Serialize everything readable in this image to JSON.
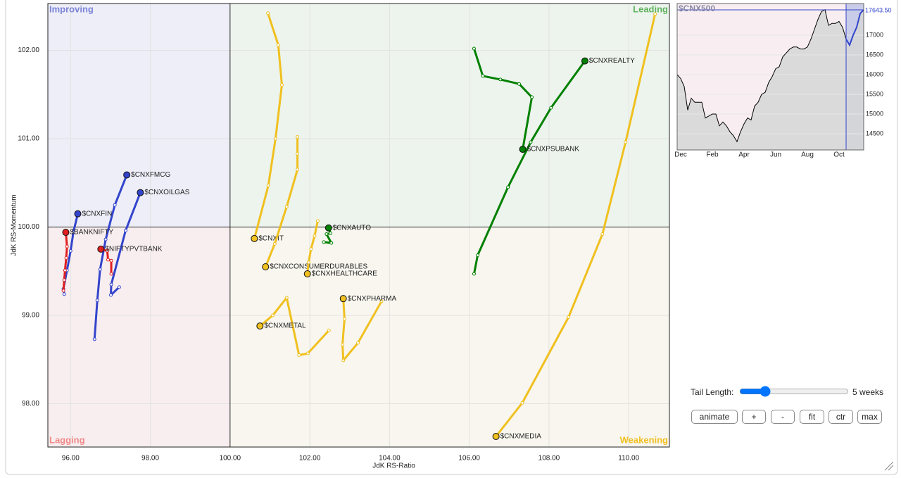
{
  "chart_data": [
    {
      "type": "rrg",
      "x_label": "JdK RS-Ratio",
      "y_label": "JdK RS-Momentum",
      "xlim": [
        95.43,
        111.02
      ],
      "ylim": [
        97.51,
        102.53
      ],
      "center": [
        100,
        100
      ],
      "grid": true,
      "xticks": [
        {
          "value": 96,
          "label": "96.00"
        },
        {
          "value": 98,
          "label": "98.00"
        },
        {
          "value": 100,
          "label": "100.00"
        },
        {
          "value": 102,
          "label": "102.00"
        },
        {
          "value": 104,
          "label": "104.00"
        },
        {
          "value": 106,
          "label": "106.00"
        },
        {
          "value": 108,
          "label": "108.00"
        },
        {
          "value": 110,
          "label": "110.00"
        }
      ],
      "yticks": [
        {
          "value": 98,
          "label": "98.00"
        },
        {
          "value": 99,
          "label": "99.00"
        },
        {
          "value": 100,
          "label": "100.00"
        },
        {
          "value": 101,
          "label": "101.00"
        },
        {
          "value": 102,
          "label": "102.00"
        }
      ],
      "quadrants": [
        {
          "label": "Improving",
          "color": "#7b84d8",
          "fill": "#eeeef8"
        },
        {
          "label": "Leading",
          "color": "#5fb35f",
          "fill": "#edf4ed"
        },
        {
          "label": "Lagging",
          "color": "#f08a8a",
          "fill": "#f8eeef"
        },
        {
          "label": "Weakening",
          "color": "#f0c020",
          "fill": "#f8f6ee"
        }
      ],
      "series": [
        {
          "name": "$CNXREALTY",
          "color": "#008000",
          "x": [
            106.12,
            106.21,
            106.97,
            107.54,
            108.05,
            108.9
          ],
          "values": [
            99.47,
            99.68,
            100.45,
            100.96,
            101.35,
            101.88
          ]
        },
        {
          "name": "$CNXPSUBANK",
          "color": "#008000",
          "x": [
            106.12,
            106.34,
            106.78,
            107.25,
            107.57,
            107.34
          ],
          "values": [
            102.02,
            101.71,
            101.67,
            101.62,
            101.47,
            100.88
          ]
        },
        {
          "name": "$CNXAUTO",
          "color": "#008000",
          "x": [
            102.35,
            102.54,
            102.42,
            102.52,
            102.47
          ],
          "values": [
            99.83,
            99.82,
            99.92,
            99.93,
            99.99
          ]
        },
        {
          "name": "$CNXMEDIA",
          "color": "#f0c020",
          "x": [
            110.66,
            109.92,
            109.34,
            108.49,
            107.33,
            106.67
          ],
          "values": [
            102.41,
            100.96,
            99.92,
            98.98,
            98.01,
            97.63
          ]
        },
        {
          "name": "$CNXIT",
          "color": "#f0c020",
          "x": [
            100.95,
            101.21,
            101.3,
            101.14,
            100.96,
            100.61
          ],
          "values": [
            102.42,
            102.06,
            101.61,
            101.0,
            100.47,
            99.87
          ]
        },
        {
          "name": "$CNXCONSUMERDURABLES",
          "color": "#f0c020",
          "x": [
            101.69,
            101.69,
            101.69,
            101.42,
            101.12,
            100.89
          ],
          "values": [
            101.02,
            100.83,
            100.65,
            100.23,
            99.81,
            99.55
          ]
        },
        {
          "name": "$CNXHEALTHCARE",
          "color": "#f0c020",
          "x": [
            102.2,
            102.12,
            102.03,
            101.97,
            101.94
          ],
          "values": [
            100.07,
            99.9,
            99.75,
            99.6,
            99.47
          ]
        },
        {
          "name": "$CNXMETAL",
          "color": "#f0c020",
          "x": [
            102.48,
            101.95,
            101.73,
            101.42,
            101.07,
            100.75
          ],
          "values": [
            98.83,
            98.57,
            98.55,
            99.2,
            99.0,
            98.88
          ]
        },
        {
          "name": "$CNXPHARMA",
          "color": "#f0c020",
          "x": [
            103.8,
            103.21,
            102.84,
            102.82,
            102.87,
            102.84
          ],
          "values": [
            99.16,
            98.69,
            98.49,
            98.67,
            98.96,
            99.19
          ]
        },
        {
          "name": "$CNXFMCG",
          "color": "#3344cc",
          "x": [
            96.6,
            96.67,
            96.74,
            96.88,
            97.11,
            97.41
          ],
          "values": [
            98.73,
            99.17,
            99.52,
            99.86,
            100.25,
            100.59
          ]
        },
        {
          "name": "$CNXOILGAS",
          "color": "#3344cc",
          "x": [
            97.22,
            97.01,
            97.02,
            97.38,
            97.75
          ],
          "values": [
            99.32,
            99.23,
            99.35,
            99.96,
            100.39
          ]
        },
        {
          "name": "$CNXFIN",
          "color": "#3344cc",
          "x": [
            95.84,
            95.82,
            95.91,
            96.0,
            96.07,
            96.18
          ],
          "values": [
            99.24,
            99.3,
            99.51,
            99.73,
            99.94,
            100.15
          ]
        },
        {
          "name": "$BANKNIFTY",
          "color": "#e02020",
          "x": [
            95.82,
            95.84,
            95.86,
            95.89,
            95.91,
            95.88
          ],
          "values": [
            99.28,
            99.4,
            99.51,
            99.65,
            99.78,
            99.94
          ]
        },
        {
          "name": "$NIFTYPVTBANK",
          "color": "#e02020",
          "x": [
            97.02,
            97.02,
            96.94,
            96.92,
            96.76
          ],
          "values": [
            99.47,
            99.62,
            99.63,
            99.73,
            99.75
          ]
        }
      ]
    },
    {
      "type": "area",
      "title": "$CNX500",
      "color": "#000000",
      "highlight_color": "#3344cc",
      "categories": [
        null,
        "Dec",
        null,
        null,
        null,
        null,
        null,
        null,
        null,
        null,
        "Feb",
        null,
        null,
        null,
        null,
        null,
        null,
        null,
        null,
        "Apr",
        null,
        null,
        null,
        null,
        null,
        null,
        null,
        null,
        "Jun",
        null,
        null,
        null,
        null,
        null,
        null,
        null,
        null,
        "Aug",
        null,
        null,
        null,
        null,
        null,
        null,
        null,
        null,
        "Oct",
        null,
        null,
        null,
        null,
        null,
        null,
        null
      ],
      "values": [
        16000,
        15900,
        15700,
        15100,
        15400,
        15300,
        15300,
        15300,
        14900,
        14950,
        15000,
        15000,
        14700,
        14800,
        14700,
        14550,
        14450,
        14300,
        14550,
        14750,
        14900,
        14850,
        15200,
        15300,
        15500,
        15550,
        15800,
        15950,
        16150,
        16200,
        16450,
        16550,
        16650,
        16700,
        16700,
        16650,
        16650,
        16700,
        16900,
        17150,
        17400,
        17600,
        17650,
        17250,
        17300,
        17300,
        17350,
        17200,
        16900,
        16750,
        17000,
        17200,
        17550,
        17643.5
      ],
      "last_label": "17643.50",
      "highlight_start": 48,
      "ylim": [
        14089,
        17804
      ],
      "yticks": [
        14500,
        15000,
        15500,
        16000,
        16500,
        17000
      ]
    }
  ],
  "controls": {
    "tail_label": "Tail Length:",
    "tail_length": 5,
    "tail_length_label": "5 weeks",
    "buttons": [
      "animate",
      "+",
      "-",
      "fit",
      "ctr",
      "max"
    ]
  }
}
